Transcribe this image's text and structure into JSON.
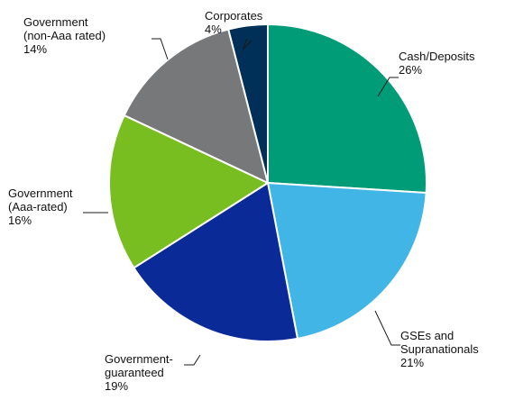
{
  "chart_data": {
    "type": "pie",
    "title": "",
    "slices": [
      {
        "name": "Cash/Deposits",
        "label_lines": [
          "Cash/Deposits",
          "26%"
        ],
        "value": 26,
        "color": "#009b77"
      },
      {
        "name": "GSEs and Supranationals",
        "label_lines": [
          "GSEs and",
          "Supranationals",
          "21%"
        ],
        "value": 21,
        "color": "#41b6e6"
      },
      {
        "name": "Government-guaranteed",
        "label_lines": [
          "Government-",
          "guaranteed",
          "19%"
        ],
        "value": 19,
        "color": "#0a2b97"
      },
      {
        "name": "Government (Aaa-rated)",
        "label_lines": [
          "Government",
          "(Aaa-rated)",
          "16%"
        ],
        "value": 16,
        "color": "#78be20"
      },
      {
        "name": "Government (non-Aaa rated)",
        "label_lines": [
          "Government",
          "(non-Aaa rated)",
          "14%"
        ],
        "value": 14,
        "color": "#76787a"
      },
      {
        "name": "Corporates",
        "label_lines": [
          "Corporates",
          "4%"
        ],
        "value": 4,
        "color": "#003057"
      }
    ]
  }
}
